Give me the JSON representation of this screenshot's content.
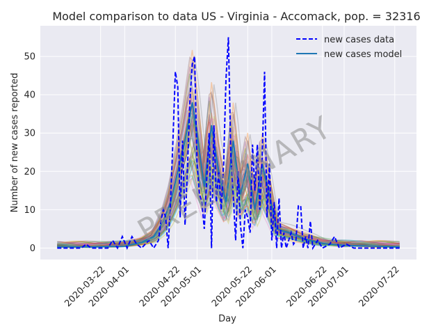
{
  "chart_data": {
    "type": "line",
    "title": "Model comparison to data US - Virginia - Accomack, pop. = 32316",
    "xlabel": "Day",
    "ylabel": "Number of new cases reported",
    "x_start": "2020-03-04",
    "x_end": "2020-07-24",
    "xlim": [
      "2020-02-26",
      "2020-07-31"
    ],
    "ylim": [
      -3,
      58
    ],
    "grid": true,
    "background": "#eaeaf2",
    "legend_position": "top-right",
    "x_ticks": [
      "2020-03-22",
      "2020-04-01",
      "2020-04-22",
      "2020-05-01",
      "2020-05-22",
      "2020-06-01",
      "2020-06-22",
      "2020-07-01",
      "2020-07-22"
    ],
    "y_ticks": [
      0,
      10,
      20,
      30,
      40,
      50
    ],
    "watermark": "PRELIMINARY",
    "series": [
      {
        "name": "new cases data",
        "style": "dashed",
        "color": "#0000ff",
        "points": [
          [
            "2020-03-04",
            0
          ],
          [
            "2020-03-14",
            0
          ],
          [
            "2020-03-16",
            1
          ],
          [
            "2020-03-18",
            0
          ],
          [
            "2020-03-25",
            0
          ],
          [
            "2020-03-27",
            2
          ],
          [
            "2020-03-29",
            0
          ],
          [
            "2020-03-31",
            3
          ],
          [
            "2020-04-02",
            0
          ],
          [
            "2020-04-04",
            3
          ],
          [
            "2020-04-06",
            1
          ],
          [
            "2020-04-08",
            0
          ],
          [
            "2020-04-11",
            2
          ],
          [
            "2020-04-13",
            0
          ],
          [
            "2020-04-15",
            2
          ],
          [
            "2020-04-16",
            7
          ],
          [
            "2020-04-17",
            10
          ],
          [
            "2020-04-18",
            8
          ],
          [
            "2020-04-19",
            0
          ],
          [
            "2020-04-20",
            12
          ],
          [
            "2020-04-21",
            28
          ],
          [
            "2020-04-22",
            46
          ],
          [
            "2020-04-23",
            42
          ],
          [
            "2020-04-24",
            8
          ],
          [
            "2020-04-25",
            28
          ],
          [
            "2020-04-26",
            6
          ],
          [
            "2020-04-27",
            20
          ],
          [
            "2020-04-28",
            38
          ],
          [
            "2020-04-29",
            48
          ],
          [
            "2020-04-30",
            50
          ],
          [
            "2020-05-01",
            22
          ],
          [
            "2020-05-02",
            14
          ],
          [
            "2020-05-03",
            12
          ],
          [
            "2020-05-04",
            5
          ],
          [
            "2020-05-05",
            18
          ],
          [
            "2020-05-06",
            30
          ],
          [
            "2020-05-07",
            0
          ],
          [
            "2020-05-08",
            32
          ],
          [
            "2020-05-09",
            12
          ],
          [
            "2020-05-10",
            20
          ],
          [
            "2020-05-11",
            10
          ],
          [
            "2020-05-12",
            22
          ],
          [
            "2020-05-13",
            44
          ],
          [
            "2020-05-14",
            55
          ],
          [
            "2020-05-15",
            24
          ],
          [
            "2020-05-16",
            14
          ],
          [
            "2020-05-17",
            2
          ],
          [
            "2020-05-18",
            20
          ],
          [
            "2020-05-19",
            6
          ],
          [
            "2020-05-20",
            0
          ],
          [
            "2020-05-21",
            10
          ],
          [
            "2020-05-22",
            8
          ],
          [
            "2020-05-23",
            4
          ],
          [
            "2020-05-24",
            27
          ],
          [
            "2020-05-25",
            15
          ],
          [
            "2020-05-26",
            27
          ],
          [
            "2020-05-27",
            10
          ],
          [
            "2020-05-28",
            24
          ],
          [
            "2020-05-29",
            46
          ],
          [
            "2020-05-30",
            8
          ],
          [
            "2020-05-31",
            22
          ],
          [
            "2020-06-01",
            2
          ],
          [
            "2020-06-02",
            12
          ],
          [
            "2020-06-03",
            0
          ],
          [
            "2020-06-04",
            13
          ],
          [
            "2020-06-05",
            0
          ],
          [
            "2020-06-06",
            4
          ],
          [
            "2020-06-07",
            0
          ],
          [
            "2020-06-08",
            2
          ],
          [
            "2020-06-09",
            4
          ],
          [
            "2020-06-10",
            1
          ],
          [
            "2020-06-11",
            2
          ],
          [
            "2020-06-12",
            11
          ],
          [
            "2020-06-13",
            11
          ],
          [
            "2020-06-14",
            0
          ],
          [
            "2020-06-15",
            3
          ],
          [
            "2020-06-16",
            0
          ],
          [
            "2020-06-17",
            7
          ],
          [
            "2020-06-18",
            0
          ],
          [
            "2020-06-20",
            2
          ],
          [
            "2020-06-22",
            0
          ],
          [
            "2020-06-25",
            1
          ],
          [
            "2020-06-27",
            3
          ],
          [
            "2020-06-29",
            0
          ],
          [
            "2020-07-02",
            1
          ],
          [
            "2020-07-05",
            0
          ],
          [
            "2020-07-24",
            0
          ]
        ]
      },
      {
        "name": "new cases model",
        "style": "solid",
        "color": "#1f77b4",
        "points": [
          [
            "2020-03-04",
            0.3
          ],
          [
            "2020-03-18",
            0.3
          ],
          [
            "2020-04-01",
            0.5
          ],
          [
            "2020-04-08",
            1.5
          ],
          [
            "2020-04-13",
            3
          ],
          [
            "2020-04-17",
            7
          ],
          [
            "2020-04-20",
            12
          ],
          [
            "2020-04-23",
            20
          ],
          [
            "2020-04-26",
            28
          ],
          [
            "2020-04-29",
            38
          ],
          [
            "2020-05-01",
            30
          ],
          [
            "2020-05-04",
            16
          ],
          [
            "2020-05-07",
            32
          ],
          [
            "2020-05-10",
            20
          ],
          [
            "2020-05-13",
            12
          ],
          [
            "2020-05-16",
            28
          ],
          [
            "2020-05-19",
            14
          ],
          [
            "2020-05-22",
            22
          ],
          [
            "2020-05-25",
            10
          ],
          [
            "2020-05-28",
            22
          ],
          [
            "2020-05-31",
            14
          ],
          [
            "2020-06-03",
            5
          ],
          [
            "2020-06-08",
            4
          ],
          [
            "2020-06-14",
            2.5
          ],
          [
            "2020-06-22",
            1.2
          ],
          [
            "2020-07-01",
            0.7
          ],
          [
            "2020-07-24",
            0.3
          ]
        ]
      }
    ],
    "ensemble_colors": [
      "#1f77b4",
      "#ff7f0e",
      "#2ca02c",
      "#d62728",
      "#9467bd",
      "#8c564b",
      "#e377c2",
      "#bcbd22",
      "#17becf",
      "#7f7f7f"
    ]
  }
}
